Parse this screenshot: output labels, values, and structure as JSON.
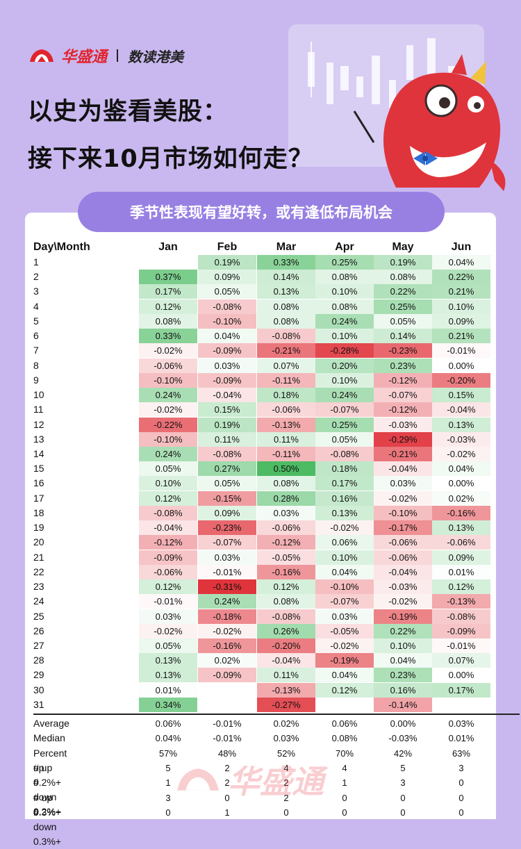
{
  "brand": {
    "name": "华盛通",
    "column": "数读港美"
  },
  "title": {
    "line1": "以史为鉴看美股：",
    "line2": "接下来10月市场如何走？"
  },
  "subtitle": "季节性表现有望好转，或有逢低布局机会",
  "watermark": "华盛通",
  "colors": {
    "positive": "#4cbb63",
    "negative": "#e0343c",
    "card": "#ffffff",
    "background": "#c9b8ef",
    "pill": "#9880e3"
  },
  "chart_data": {
    "type": "heatmap",
    "corner_label": "Day\\Month",
    "months": [
      "Jan",
      "Feb",
      "Mar",
      "Apr",
      "May",
      "Jun"
    ],
    "days": [
      "1",
      "2",
      "3",
      "4",
      "5",
      "6",
      "7",
      "8",
      "9",
      "10",
      "11",
      "12",
      "13",
      "14",
      "15",
      "16",
      "17",
      "18",
      "19",
      "20",
      "21",
      "22",
      "23",
      "24",
      "25",
      "26",
      "27",
      "28",
      "29",
      "30",
      "31"
    ],
    "values": [
      [
        null,
        0.19,
        0.33,
        0.25,
        0.19,
        0.04
      ],
      [
        0.37,
        0.09,
        0.14,
        0.08,
        0.08,
        0.22
      ],
      [
        0.17,
        0.05,
        0.13,
        0.1,
        0.22,
        0.21
      ],
      [
        0.12,
        -0.08,
        0.08,
        0.08,
        0.25,
        0.1
      ],
      [
        0.08,
        -0.1,
        0.08,
        0.24,
        0.05,
        0.09
      ],
      [
        0.33,
        0.04,
        -0.08,
        0.1,
        0.14,
        0.21
      ],
      [
        -0.02,
        -0.09,
        -0.21,
        -0.28,
        -0.23,
        -0.01
      ],
      [
        -0.06,
        0.03,
        0.07,
        0.2,
        0.23,
        0.0
      ],
      [
        -0.1,
        -0.09,
        -0.11,
        0.1,
        -0.12,
        -0.2
      ],
      [
        0.24,
        -0.04,
        0.18,
        0.24,
        -0.07,
        0.15
      ],
      [
        -0.02,
        0.15,
        -0.06,
        -0.07,
        -0.12,
        -0.04
      ],
      [
        -0.22,
        0.19,
        -0.13,
        0.25,
        -0.03,
        0.13
      ],
      [
        -0.1,
        0.11,
        0.11,
        0.05,
        -0.29,
        -0.03
      ],
      [
        0.24,
        -0.08,
        -0.11,
        -0.08,
        -0.21,
        -0.02
      ],
      [
        0.05,
        0.27,
        0.5,
        0.18,
        -0.04,
        0.04
      ],
      [
        0.1,
        0.05,
        0.08,
        0.17,
        0.03,
        0.0
      ],
      [
        0.12,
        -0.15,
        0.28,
        0.16,
        -0.02,
        0.02
      ],
      [
        -0.08,
        0.09,
        0.03,
        0.13,
        -0.1,
        -0.16
      ],
      [
        -0.04,
        -0.23,
        -0.06,
        -0.02,
        -0.17,
        0.13
      ],
      [
        -0.12,
        -0.07,
        -0.12,
        0.06,
        -0.06,
        -0.06
      ],
      [
        -0.09,
        0.03,
        -0.05,
        0.1,
        -0.06,
        0.09
      ],
      [
        -0.06,
        -0.01,
        -0.16,
        0.04,
        -0.04,
        0.01
      ],
      [
        0.12,
        -0.31,
        0.12,
        -0.1,
        -0.03,
        0.12
      ],
      [
        -0.01,
        0.24,
        0.08,
        -0.07,
        -0.02,
        -0.13
      ],
      [
        0.03,
        -0.18,
        -0.08,
        0.03,
        -0.19,
        -0.08
      ],
      [
        -0.02,
        -0.02,
        0.26,
        -0.05,
        0.22,
        -0.09
      ],
      [
        0.05,
        -0.16,
        -0.2,
        -0.02,
        0.1,
        -0.01
      ],
      [
        0.13,
        0.02,
        -0.04,
        -0.19,
        0.04,
        0.07
      ],
      [
        0.13,
        -0.09,
        0.11,
        0.04,
        0.23,
        0.0
      ],
      [
        0.01,
        null,
        -0.13,
        0.12,
        0.16,
        0.17
      ],
      [
        0.34,
        null,
        -0.27,
        null,
        -0.14,
        null
      ]
    ],
    "summary": [
      {
        "label": "Average",
        "values": [
          "0.06%",
          "-0.01%",
          "0.02%",
          "0.06%",
          "0.00%",
          "0.03%"
        ]
      },
      {
        "label": "Median",
        "values": [
          "0.04%",
          "-0.01%",
          "0.03%",
          "0.08%",
          "-0.03%",
          "0.01%"
        ]
      },
      {
        "label": "Percent up",
        "values": [
          "57%",
          "48%",
          "52%",
          "70%",
          "42%",
          "63%"
        ]
      },
      {
        "label": "# up 0.2%+",
        "values": [
          "5",
          "2",
          "4",
          "4",
          "5",
          "3"
        ]
      },
      {
        "label": "# down 0.2%+",
        "values": [
          "1",
          "2",
          "2",
          "1",
          "3",
          "0"
        ]
      },
      {
        "label": "# up 0.3%+",
        "values": [
          "3",
          "0",
          "2",
          "0",
          "0",
          "0"
        ]
      },
      {
        "label": "# down 0.3%+",
        "values": [
          "0",
          "1",
          "0",
          "0",
          "0",
          "0"
        ]
      }
    ],
    "value_unit": "%",
    "color_scale": {
      "min": -0.31,
      "max": 0.5,
      "negative": "red",
      "positive": "green"
    }
  }
}
